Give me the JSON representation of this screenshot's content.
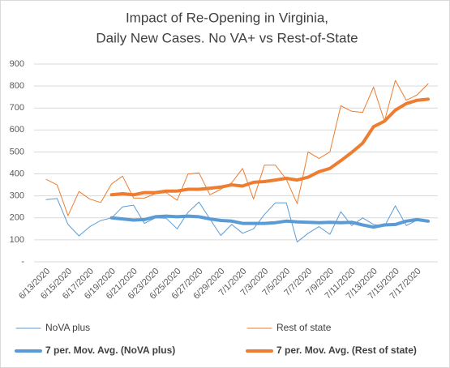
{
  "chart_data": {
    "type": "line",
    "title": [
      "Impact of Re-Opening in Virginia,",
      "Daily New Cases. No VA+ vs Rest-of-State"
    ],
    "categories": [
      "6/13/2020",
      null,
      "6/15/2020",
      null,
      "6/17/2020",
      null,
      "6/19/2020",
      null,
      "6/21/2020",
      null,
      "6/23/2020",
      null,
      "6/25/2020",
      null,
      "6/27/2020",
      null,
      "6/29/2020",
      null,
      "7/1/2020",
      null,
      "7/3/2020",
      null,
      "7/5/2020",
      null,
      "7/7/2020",
      null,
      "7/9/2020",
      null,
      "7/11/2020",
      null,
      "7/13/2020",
      null,
      "7/15/2020",
      null,
      "7/17/2020",
      null
    ],
    "series": [
      {
        "name": "NoVA plus",
        "color": "#5b9bd5",
        "width": 1,
        "values": [
          283,
          288,
          170,
          118,
          160,
          188,
          200,
          250,
          258,
          175,
          200,
          198,
          150,
          225,
          272,
          195,
          120,
          170,
          130,
          150,
          215,
          268,
          268,
          90,
          130,
          160,
          125,
          228,
          165,
          200,
          170,
          162,
          255,
          165,
          190,
          180
        ]
      },
      {
        "name": "Rest of state",
        "color": "#ed7d31",
        "width": 1,
        "values": [
          375,
          350,
          210,
          320,
          285,
          270,
          355,
          390,
          290,
          290,
          310,
          315,
          280,
          400,
          405,
          305,
          330,
          360,
          425,
          285,
          440,
          440,
          375,
          265,
          500,
          470,
          500,
          710,
          685,
          680,
          795,
          640,
          825,
          735,
          760,
          810
        ]
      },
      {
        "name": "7 per. Mov. Avg. (NoVA plus)",
        "color": "#5b9bd5",
        "width": 4,
        "values": [
          null,
          null,
          null,
          null,
          null,
          null,
          200,
          195,
          190,
          192,
          205,
          208,
          205,
          208,
          205,
          195,
          188,
          185,
          175,
          175,
          175,
          178,
          185,
          182,
          180,
          178,
          180,
          178,
          180,
          168,
          158,
          168,
          170,
          185,
          192,
          185
        ]
      },
      {
        "name": "7 per. Mov. Avg. (Rest of state)",
        "color": "#ed7d31",
        "width": 4,
        "values": [
          null,
          null,
          null,
          null,
          null,
          null,
          305,
          310,
          305,
          315,
          315,
          322,
          322,
          330,
          330,
          335,
          340,
          350,
          345,
          362,
          365,
          372,
          380,
          372,
          385,
          410,
          425,
          460,
          498,
          540,
          615,
          640,
          690,
          720,
          735,
          740
        ]
      }
    ],
    "ylim": [
      0,
      900
    ],
    "yticks": [
      {
        "value": 0,
        "label": "-"
      },
      100,
      200,
      300,
      400,
      500,
      600,
      700,
      800,
      900
    ],
    "grid": true
  }
}
